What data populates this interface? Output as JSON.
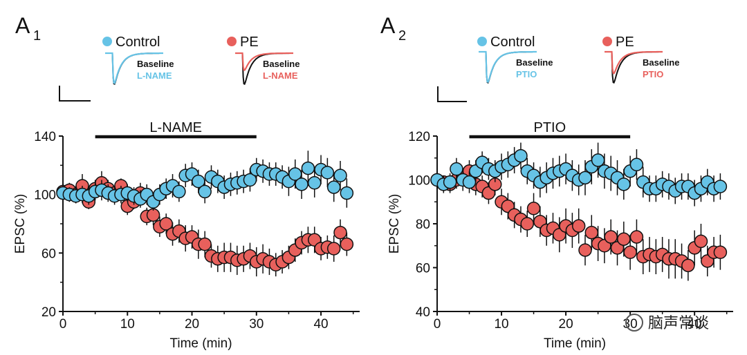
{
  "colors": {
    "control": "#66c3e6",
    "pe": "#e8605c",
    "axis": "#111111"
  },
  "watermark": "脑声常谈",
  "chart_data": [
    {
      "type": "scatter",
      "panel": "A",
      "panel_sub": "1",
      "drug": "L-NAME",
      "drug_bar": [
        5,
        30
      ],
      "xlabel": "Time (min)",
      "ylabel": "EPSC (%)",
      "xlim": [
        0,
        46
      ],
      "ylim": [
        20,
        140
      ],
      "xticks": [
        0,
        10,
        20,
        30,
        40
      ],
      "yticks": [
        20,
        60,
        100,
        140
      ],
      "legend": [
        {
          "name": "Control",
          "baseline_label": "Baseline",
          "drug_label": "L-NAME",
          "drug_effect": 0.97
        },
        {
          "name": "PE",
          "baseline_label": "Baseline",
          "drug_label": "L-NAME",
          "drug_effect": 0.55
        }
      ],
      "series": [
        {
          "name": "PE",
          "color": "#e8605c",
          "x": [
            0,
            1,
            2,
            3,
            4,
            5,
            6,
            7,
            8,
            9,
            10,
            11,
            12,
            13,
            14,
            15,
            16,
            17,
            18,
            19,
            20,
            21,
            22,
            23,
            24,
            25,
            26,
            27,
            28,
            29,
            30,
            31,
            32,
            33,
            34,
            35,
            36,
            37,
            38,
            39,
            40,
            41,
            42,
            43,
            44
          ],
          "y": [
            102,
            103,
            100,
            106,
            95,
            104,
            108,
            104,
            101,
            106,
            92,
            95,
            101,
            85,
            86,
            78,
            80,
            73,
            75,
            70,
            71,
            66,
            66,
            58,
            56,
            57,
            57,
            55,
            56,
            58,
            54,
            56,
            54,
            52,
            54,
            57,
            62,
            67,
            69,
            69,
            63,
            64,
            63,
            74,
            66
          ],
          "err": [
            4,
            5,
            6,
            8,
            5,
            6,
            8,
            6,
            5,
            5,
            6,
            5,
            7,
            6,
            7,
            7,
            7,
            8,
            8,
            9,
            8,
            10,
            9,
            8,
            9,
            10,
            10,
            10,
            9,
            9,
            10,
            10,
            9,
            8,
            8,
            8,
            8,
            8,
            9,
            9,
            8,
            8,
            9,
            9,
            8
          ]
        },
        {
          "name": "Control",
          "color": "#66c3e6",
          "x": [
            0,
            1,
            2,
            3,
            4,
            5,
            6,
            7,
            8,
            9,
            10,
            11,
            12,
            13,
            14,
            15,
            16,
            17,
            18,
            19,
            20,
            21,
            22,
            23,
            24,
            25,
            26,
            27,
            28,
            29,
            30,
            31,
            32,
            33,
            34,
            35,
            36,
            37,
            38,
            39,
            40,
            41,
            42,
            43,
            44
          ],
          "y": [
            101,
            100,
            99,
            100,
            99,
            102,
            103,
            101,
            99,
            100,
            101,
            99,
            97,
            100,
            95,
            100,
            104,
            106,
            102,
            113,
            114,
            109,
            102,
            112,
            109,
            105,
            107,
            108,
            109,
            110,
            117,
            116,
            114,
            114,
            112,
            109,
            114,
            107,
            118,
            108,
            117,
            115,
            105,
            113,
            101
          ],
          "err": [
            5,
            5,
            5,
            6,
            6,
            6,
            7,
            6,
            6,
            6,
            6,
            6,
            6,
            7,
            6,
            7,
            7,
            8,
            7,
            8,
            8,
            8,
            8,
            8,
            8,
            8,
            8,
            8,
            8,
            8,
            8,
            8,
            8,
            8,
            8,
            10,
            10,
            10,
            12,
            10,
            10,
            10,
            10,
            10,
            10
          ]
        }
      ]
    },
    {
      "type": "scatter",
      "panel": "A",
      "panel_sub": "2",
      "drug": "PTIO",
      "drug_bar": [
        5,
        30
      ],
      "xlabel": "Time (min)",
      "ylabel": "EPSC (%)",
      "xlim": [
        0,
        46
      ],
      "ylim": [
        40,
        120
      ],
      "xticks": [
        0,
        10,
        20,
        30,
        40
      ],
      "yticks": [
        40,
        60,
        80,
        100,
        120
      ],
      "legend": [
        {
          "name": "Control",
          "baseline_label": "Baseline",
          "drug_label": "PTIO",
          "drug_effect": 0.98
        },
        {
          "name": "PE",
          "baseline_label": "Baseline",
          "drug_label": "PTIO",
          "drug_effect": 0.7
        }
      ],
      "series": [
        {
          "name": "PE",
          "color": "#e8605c",
          "x": [
            0,
            1,
            2,
            3,
            4,
            5,
            6,
            7,
            8,
            9,
            10,
            11,
            12,
            13,
            14,
            15,
            16,
            17,
            18,
            19,
            20,
            21,
            22,
            23,
            24,
            25,
            26,
            27,
            28,
            29,
            30,
            31,
            32,
            33,
            34,
            35,
            36,
            37,
            38,
            39,
            40,
            41,
            42,
            43,
            44
          ],
          "y": [
            100,
            99,
            98,
            100,
            101,
            104,
            98,
            97,
            94,
            98,
            90,
            88,
            84,
            82,
            80,
            87,
            81,
            77,
            78,
            75,
            79,
            77,
            79,
            68,
            76,
            71,
            70,
            74,
            69,
            73,
            67,
            74,
            65,
            66,
            65,
            66,
            64,
            64,
            63,
            61,
            69,
            72,
            63,
            67,
            67
          ],
          "err": [
            3,
            3,
            4,
            4,
            4,
            5,
            5,
            5,
            5,
            5,
            6,
            6,
            6,
            6,
            6,
            7,
            7,
            7,
            7,
            8,
            8,
            8,
            8,
            7,
            8,
            8,
            8,
            8,
            8,
            8,
            8,
            8,
            8,
            8,
            8,
            8,
            9,
            9,
            8,
            7,
            8,
            8,
            7,
            7,
            8
          ]
        },
        {
          "name": "Control",
          "color": "#66c3e6",
          "x": [
            0,
            1,
            2,
            3,
            4,
            5,
            6,
            7,
            8,
            9,
            10,
            11,
            12,
            13,
            14,
            15,
            16,
            17,
            18,
            19,
            20,
            21,
            22,
            23,
            24,
            25,
            26,
            27,
            28,
            29,
            30,
            31,
            32,
            33,
            34,
            35,
            36,
            37,
            38,
            39,
            40,
            41,
            42,
            43,
            44
          ],
          "y": [
            100,
            98,
            99,
            105,
            100,
            99,
            104,
            108,
            105,
            104,
            106,
            107,
            109,
            111,
            104,
            102,
            99,
            101,
            103,
            104,
            105,
            102,
            100,
            101,
            106,
            109,
            104,
            103,
            101,
            98,
            104,
            107,
            99,
            96,
            96,
            98,
            97,
            95,
            97,
            97,
            94,
            96,
            99,
            96,
            97
          ],
          "err": [
            4,
            4,
            4,
            5,
            5,
            5,
            5,
            5,
            5,
            5,
            6,
            6,
            6,
            6,
            6,
            6,
            7,
            7,
            7,
            7,
            7,
            7,
            7,
            8,
            8,
            8,
            8,
            8,
            8,
            7,
            7,
            7,
            7,
            6,
            6,
            6,
            6,
            6,
            6,
            6,
            6,
            6,
            6,
            6,
            6
          ]
        }
      ]
    }
  ]
}
